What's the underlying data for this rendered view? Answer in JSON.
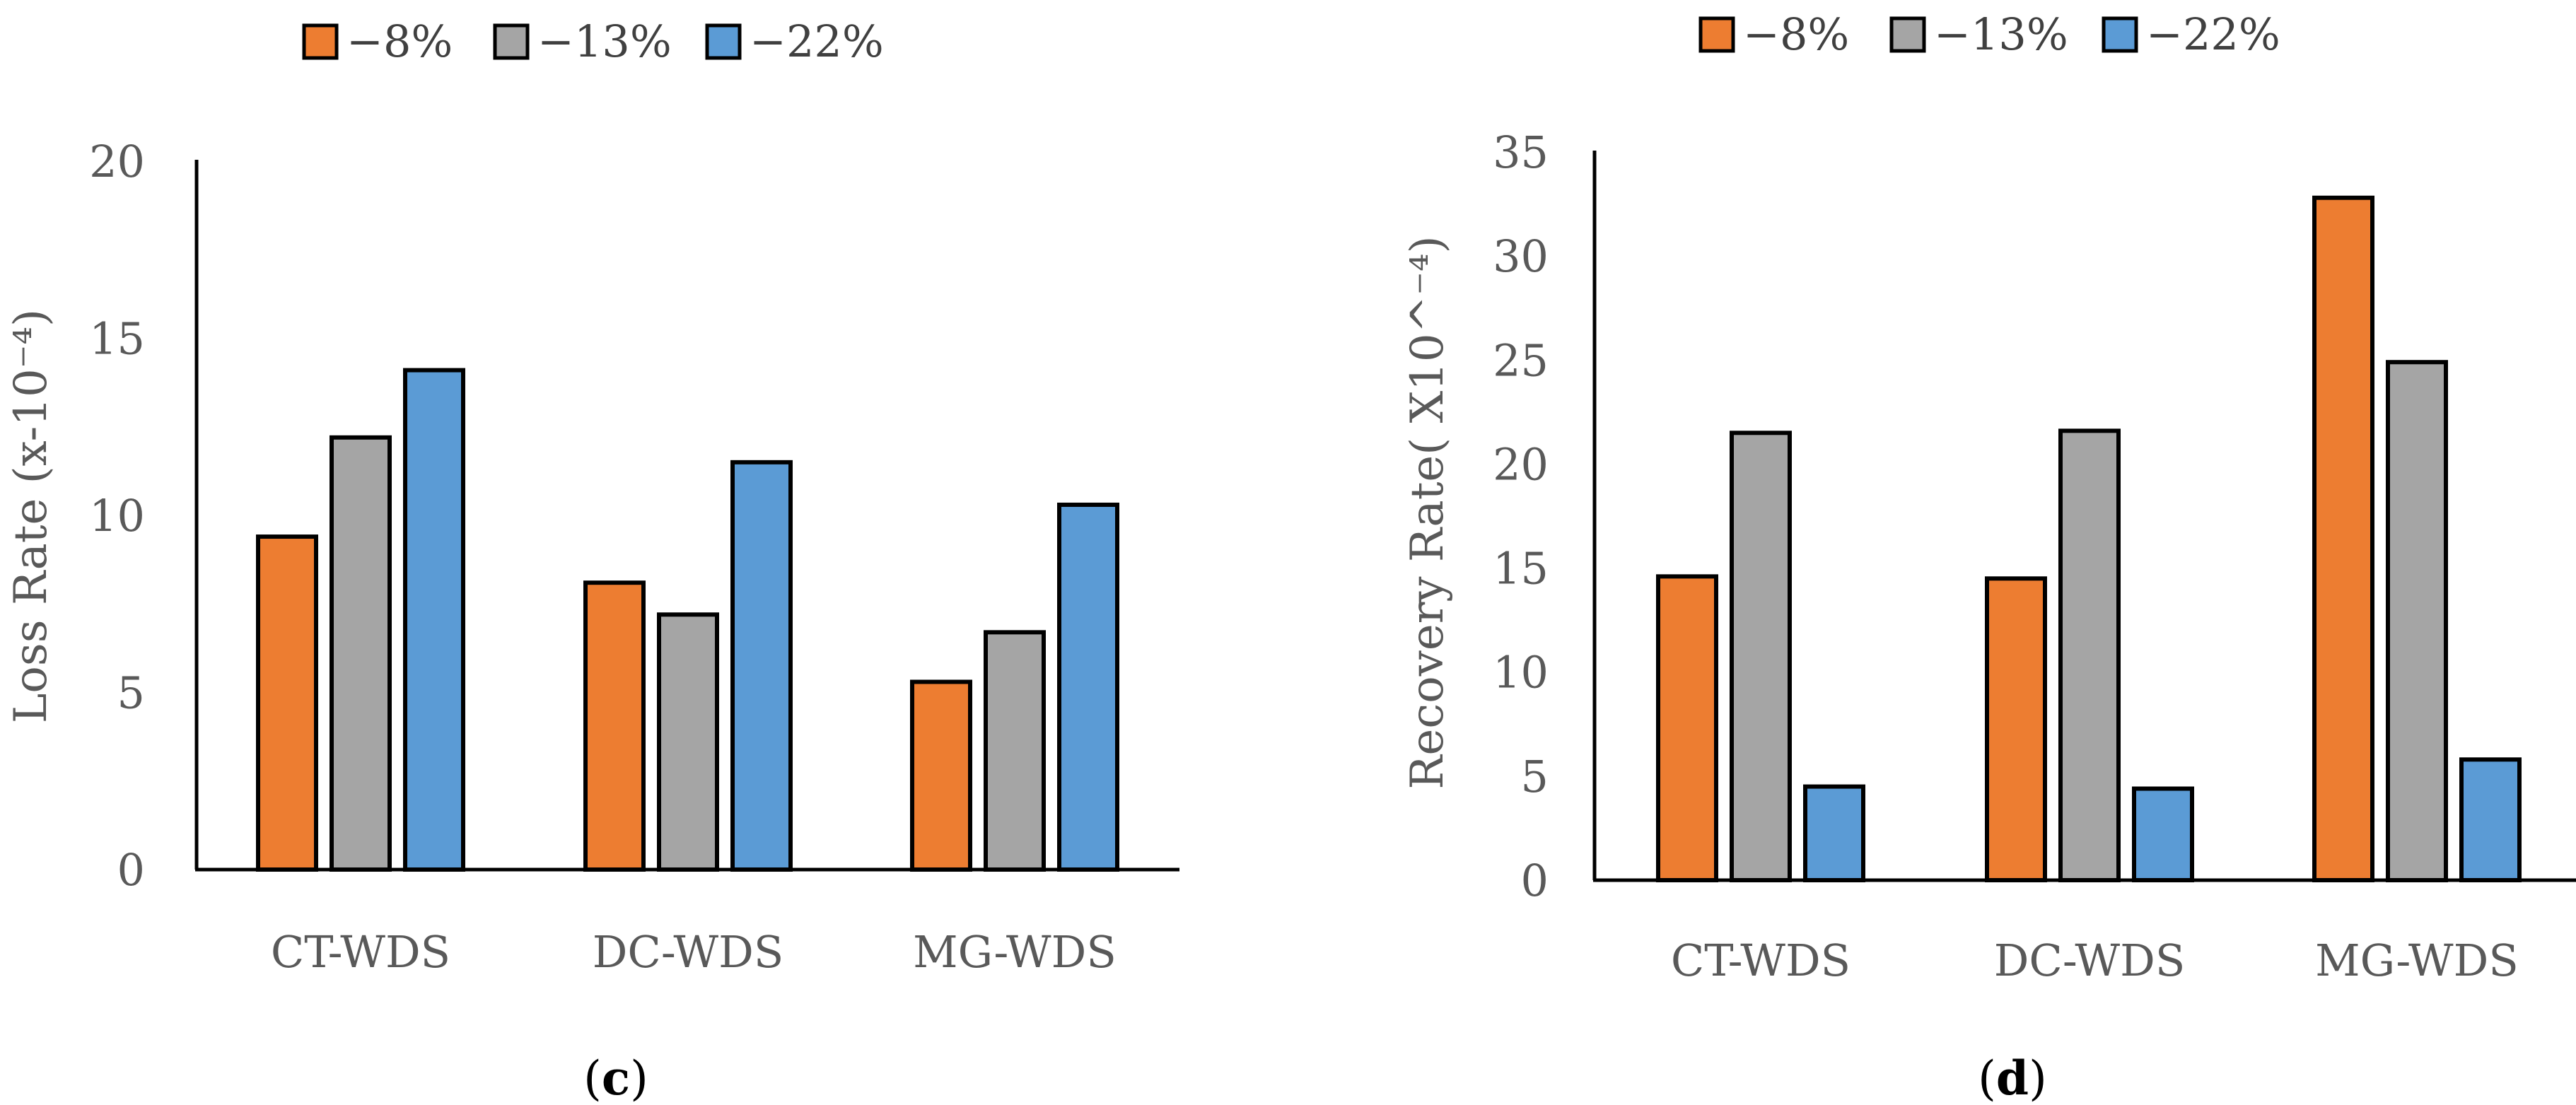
{
  "chart_data": [
    {
      "panel": "c",
      "type": "bar",
      "categories": [
        "CT-WDS",
        "DC-WDS",
        "MG-WDS"
      ],
      "series": [
        {
          "name": "−8%",
          "color": "#ED7D31",
          "values": [
            9.4,
            8.1,
            5.3
          ]
        },
        {
          "name": "−13%",
          "color": "#A5A5A5",
          "values": [
            12.2,
            7.2,
            6.7
          ]
        },
        {
          "name": "−22%",
          "color": "#5B9BD5",
          "values": [
            14.1,
            11.5,
            10.3
          ]
        }
      ],
      "ylabel": "Loss Rate (x-10⁻⁴)",
      "xlabel": "",
      "ylim": [
        0,
        20
      ],
      "yticks": [
        "0",
        "5",
        "10",
        "15",
        "20"
      ],
      "grid": false,
      "legend": "top"
    },
    {
      "panel": "d",
      "type": "bar",
      "categories": [
        "CT-WDS",
        "DC-WDS",
        "MG-WDS"
      ],
      "series": [
        {
          "name": "−8%",
          "color": "#ED7D31",
          "values": [
            14.6,
            14.5,
            32.8
          ]
        },
        {
          "name": "−13%",
          "color": "#A5A5A5",
          "values": [
            21.5,
            21.6,
            24.9
          ]
        },
        {
          "name": "−22%",
          "color": "#5B9BD5",
          "values": [
            4.5,
            4.4,
            5.8
          ]
        }
      ],
      "ylabel": "Recovery Rate( X10^⁻⁴)",
      "xlabel": "",
      "ylim": [
        0,
        35
      ],
      "yticks": [
        "0",
        "5",
        "10",
        "15",
        "20",
        "25",
        "30",
        "35"
      ],
      "grid": false,
      "legend": "top"
    }
  ],
  "panel_labels": {
    "c": {
      "open": "(",
      "letter": "c",
      "close": ")"
    },
    "d": {
      "open": "(",
      "letter": "d",
      "close": ")"
    }
  }
}
